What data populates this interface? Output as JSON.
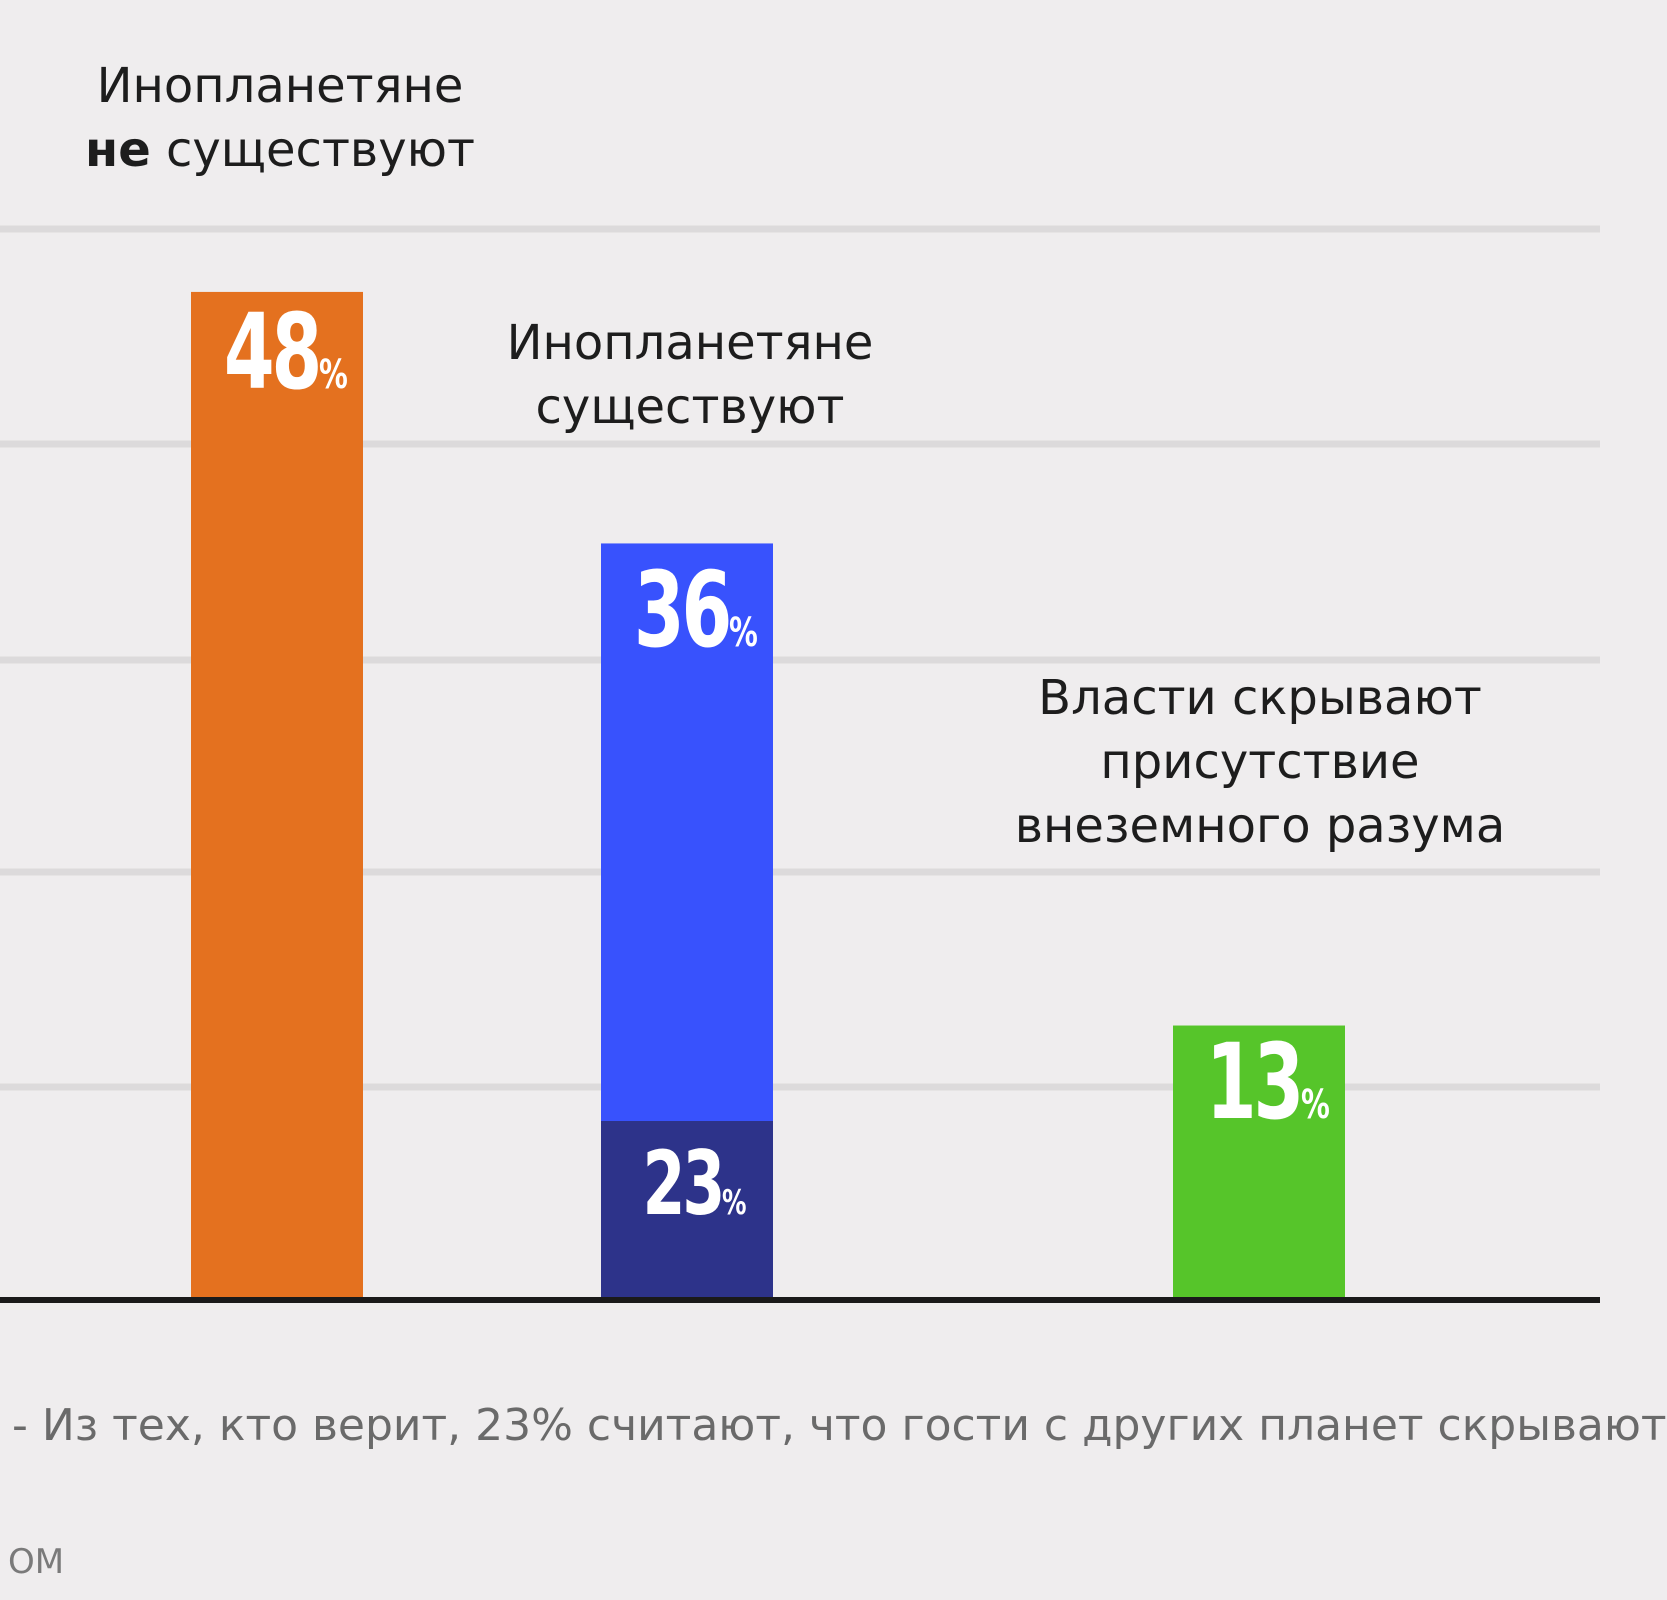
{
  "chart_data": {
    "type": "bar",
    "ylim": [
      0,
      50
    ],
    "grid": true,
    "categories": [
      {
        "line1": "Инопланетяне",
        "line2_bold": "не",
        "line2_rest": " существуют",
        "value": 48,
        "value_text": "48",
        "color": "#e4711f"
      },
      {
        "line1": "Инопланетяне",
        "line2": "существуют",
        "value": 36,
        "value_text": "36",
        "color": "#3852fd",
        "sub_value": 23,
        "sub_value_text": "23",
        "sub_color": "#2d338a"
      },
      {
        "line1": "Власти скрывают",
        "line2": "присутствие",
        "line3": "внеземного разума",
        "value": 13,
        "value_text": "13",
        "color": "#56c52a"
      }
    ],
    "percent_sign": "%"
  },
  "footnote": "- Из тех, кто верит, 23% считают, что гости с других планет скрывают",
  "source": "ОМ"
}
